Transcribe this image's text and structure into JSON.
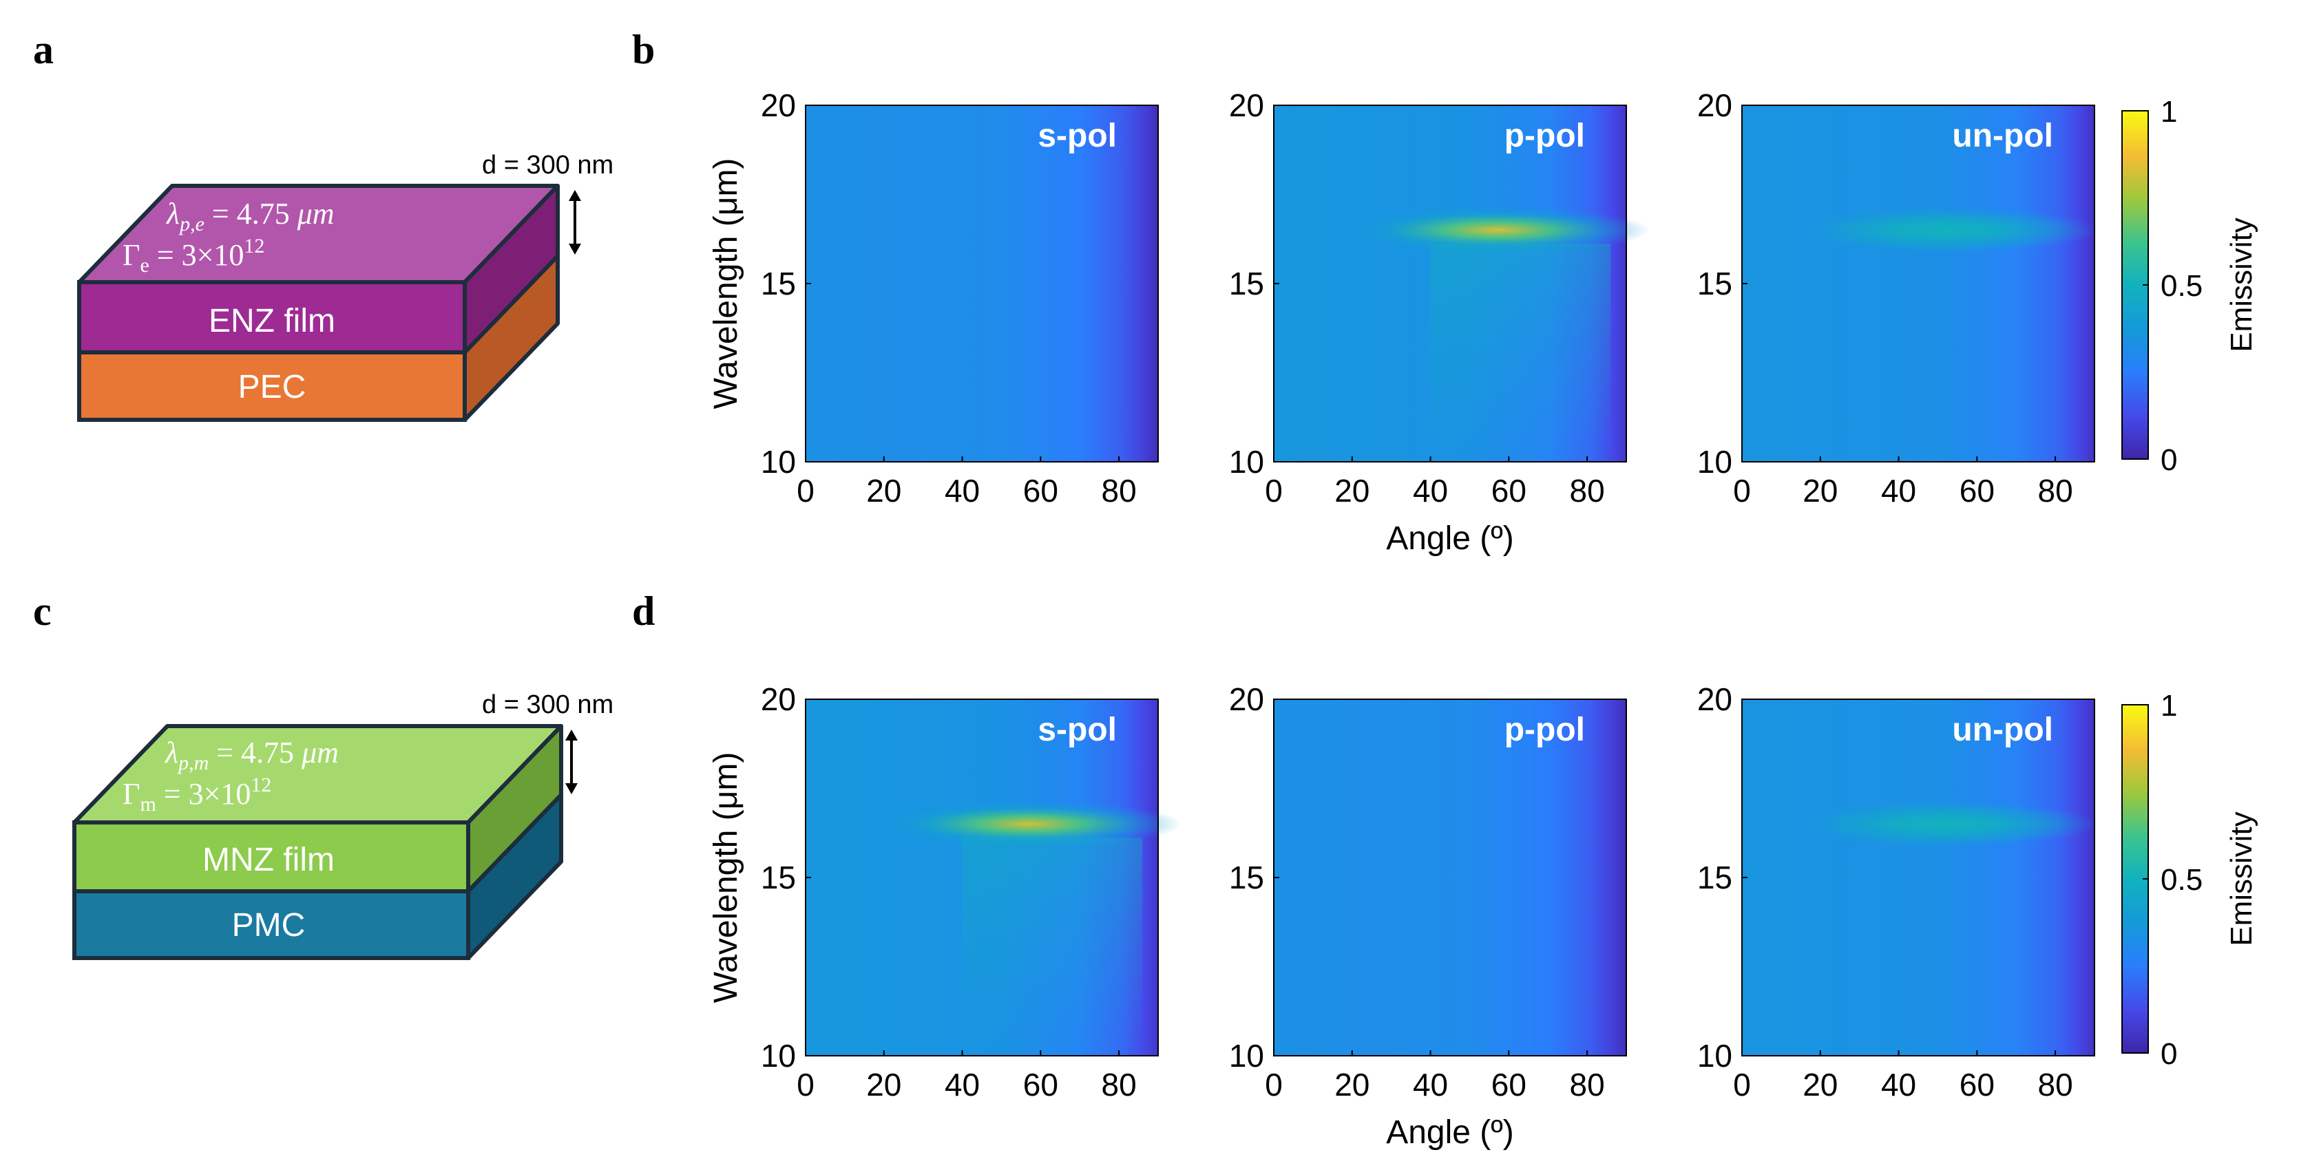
{
  "panels": [
    {
      "letter": "a"
    },
    {
      "letter": "b"
    },
    {
      "letter": "c"
    },
    {
      "letter": "d"
    }
  ],
  "schematics": [
    {
      "thickness_label": "d = 300 nm",
      "formula_line1": "λp,e = 4.75 μm",
      "formula_line2": "Γe = 3×10¹²",
      "formula_symbol1": "λ",
      "formula_sub1": "p,e",
      "formula_eq1": " = 4.75 ",
      "formula_unit1": "μm",
      "formula_symbol2": "Γ",
      "formula_sub2": "e",
      "formula_eq2": " = 3×10",
      "formula_exp2": "12",
      "film_label": "ENZ film",
      "substrate_label": "PEC",
      "colors": {
        "top": "#b256ab",
        "film": "#9e2a94",
        "film_side": "#7e1f76",
        "sub": "#e87634",
        "sub_side": "#b95a26",
        "edge": "#1d2d3c"
      }
    },
    {
      "thickness_label": "d = 300 nm",
      "formula_line1": "λp,m = 4.75 μm",
      "formula_line2": "Γm = 3×10¹²",
      "formula_symbol1": "λ",
      "formula_sub1": "p,m",
      "formula_eq1": " = 4.75 ",
      "formula_unit1": "μm",
      "formula_symbol2": "Γ",
      "formula_sub2": "m",
      "formula_eq2": " = 3×10",
      "formula_exp2": "12",
      "film_label": "MNZ film",
      "substrate_label": "PMC",
      "colors": {
        "top": "#a5d96d",
        "film": "#8ccb4c",
        "film_side": "#6a9f36",
        "sub": "#1a7aa0",
        "sub_side": "#0f5a78",
        "edge": "#1d2d3c"
      }
    }
  ],
  "chart_data": [
    {
      "type": "heatmap",
      "panel": "b",
      "title": "s-pol",
      "xlabel": "",
      "ylabel": "Wavelength (μm)",
      "xlim": [
        0,
        90
      ],
      "ylim": [
        10,
        20
      ],
      "x_ticks": [
        "0",
        "20",
        "40",
        "60",
        "80"
      ],
      "y_ticks": [
        "10",
        "15",
        "20"
      ],
      "base_emissivity": 0.33,
      "resonance": null
    },
    {
      "type": "heatmap",
      "panel": "b",
      "title": "p-pol",
      "xlabel": "Angle (º)",
      "ylabel": "",
      "xlim": [
        0,
        90
      ],
      "ylim": [
        10,
        20
      ],
      "x_ticks": [
        "0",
        "20",
        "40",
        "60",
        "80"
      ],
      "y_ticks": [
        "10",
        "15",
        "20"
      ],
      "base_emissivity": 0.36,
      "resonance": {
        "wavelength": 16.5,
        "peak_emissivity": 0.82,
        "peak_angle": 65
      }
    },
    {
      "type": "heatmap",
      "panel": "b",
      "title": "un-pol",
      "xlabel": "",
      "ylabel": "",
      "xlim": [
        0,
        90
      ],
      "ylim": [
        10,
        20
      ],
      "x_ticks": [
        "0",
        "20",
        "40",
        "60",
        "80"
      ],
      "y_ticks": [
        "10",
        "15",
        "20"
      ],
      "base_emissivity": 0.35,
      "resonance": {
        "wavelength": 16.5,
        "peak_emissivity": 0.5,
        "peak_angle": 60
      },
      "colorbar": {
        "label": "Emissivity",
        "ticks": [
          "0",
          "0.5",
          "1"
        ],
        "range": [
          0,
          1
        ]
      }
    },
    {
      "type": "heatmap",
      "panel": "d",
      "title": "s-pol",
      "xlabel": "",
      "ylabel": "Wavelength (μm)",
      "xlim": [
        0,
        90
      ],
      "ylim": [
        10,
        20
      ],
      "x_ticks": [
        "0",
        "20",
        "40",
        "60",
        "80"
      ],
      "y_ticks": [
        "10",
        "15",
        "20"
      ],
      "base_emissivity": 0.36,
      "resonance": {
        "wavelength": 16.5,
        "peak_emissivity": 0.82,
        "peak_angle": 65
      }
    },
    {
      "type": "heatmap",
      "panel": "d",
      "title": "p-pol",
      "xlabel": "Angle (º)",
      "ylabel": "",
      "xlim": [
        0,
        90
      ],
      "ylim": [
        10,
        20
      ],
      "x_ticks": [
        "0",
        "20",
        "40",
        "60",
        "80"
      ],
      "y_ticks": [
        "10",
        "15",
        "20"
      ],
      "base_emissivity": 0.33,
      "resonance": null
    },
    {
      "type": "heatmap",
      "panel": "d",
      "title": "un-pol",
      "xlabel": "",
      "ylabel": "",
      "xlim": [
        0,
        90
      ],
      "ylim": [
        10,
        20
      ],
      "x_ticks": [
        "0",
        "20",
        "40",
        "60",
        "80"
      ],
      "y_ticks": [
        "10",
        "15",
        "20"
      ],
      "base_emissivity": 0.35,
      "resonance": {
        "wavelength": 16.5,
        "peak_emissivity": 0.5,
        "peak_angle": 60
      },
      "colorbar": {
        "label": "Emissivity",
        "ticks": [
          "0",
          "0.5",
          "1"
        ],
        "range": [
          0,
          1
        ]
      }
    }
  ]
}
